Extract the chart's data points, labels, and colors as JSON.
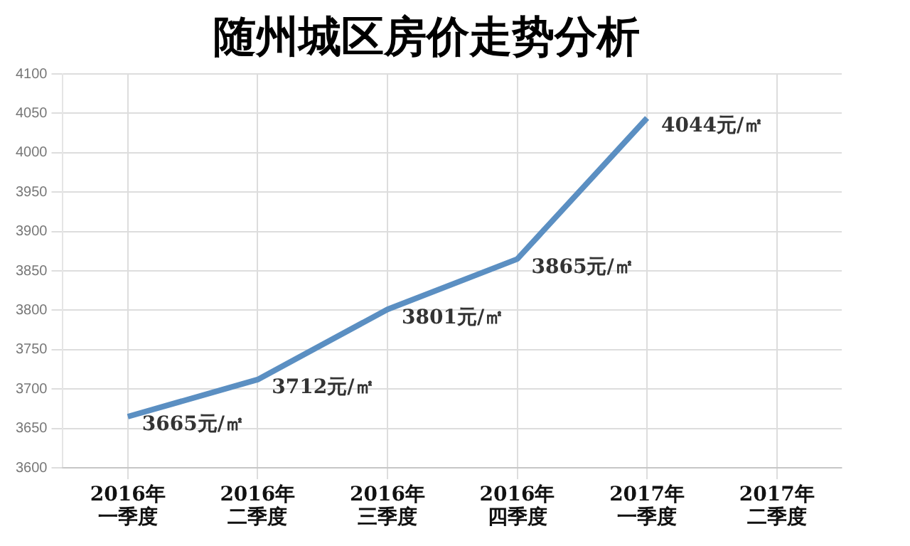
{
  "chart_data": {
    "type": "line",
    "title": "随州城区房价走势分析",
    "categories": [
      "2016年一季度",
      "2016年二季度",
      "2016年三季度",
      "2016年四季度",
      "2017年一季度",
      "2017年二季度"
    ],
    "series": [
      {
        "color": "#5b8fc2",
        "values": [
          3665,
          3712,
          3801,
          3865,
          4044,
          null
        ],
        "value_labels": [
          "3665元/㎡",
          "3712元/㎡",
          "3801元/㎡",
          "3865元/㎡",
          "4044元/㎡",
          null
        ]
      }
    ],
    "ylim": [
      3600,
      4100
    ],
    "yticks": [
      3600,
      3650,
      3700,
      3750,
      3800,
      3850,
      3900,
      3950,
      4000,
      4050,
      4100
    ],
    "grid": true,
    "legend": false,
    "marker": "none",
    "line_style": "solid"
  }
}
